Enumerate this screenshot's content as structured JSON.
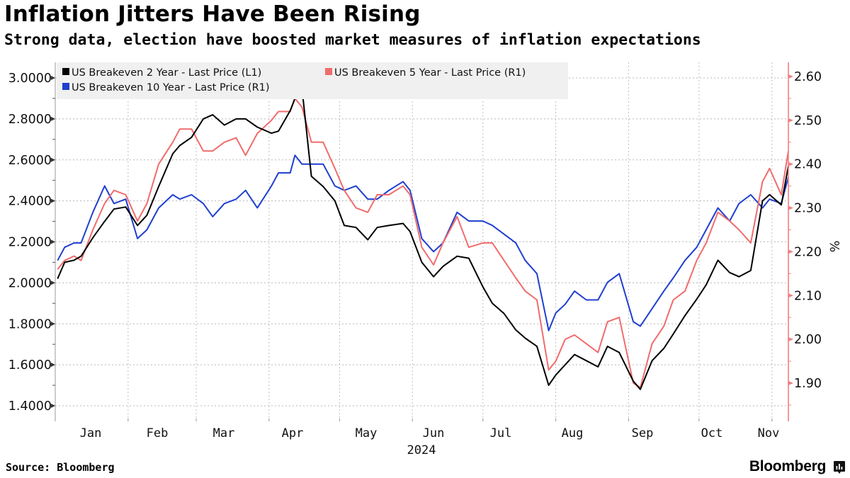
{
  "header": {
    "title": "Inflation Jitters Have Been Rising",
    "subtitle": "Strong data, election have boosted market measures of inflation expectations"
  },
  "footer": {
    "source": "Source: Bloomberg",
    "brand": "Bloomberg",
    "brand_icon": "bloomberg-terminal-icon"
  },
  "chart_data": {
    "type": "line",
    "title": "Inflation Jitters Have Been Rising",
    "subtitle": "Strong data, election have boosted market measures of inflation expectations",
    "xlabel": "2024",
    "x_tick_labels": [
      "Jan",
      "Feb",
      "Mar",
      "Apr",
      "May",
      "Jun",
      "Jul",
      "Aug",
      "Sep",
      "Oct",
      "Nov"
    ],
    "x_year_label": "2024",
    "x_range": [
      "2024-01-01",
      "2024-11-08"
    ],
    "grid": true,
    "legend_position": "top-left",
    "left_axis": {
      "ticks": [
        3.0,
        2.8,
        2.6,
        2.4,
        2.2,
        2.0,
        1.8,
        1.6,
        1.4
      ],
      "tick_labels": [
        "3.0000",
        "2.8000",
        "2.6000",
        "2.4000",
        "2.2000",
        "2.0000",
        "1.8000",
        "1.6000",
        "1.4000"
      ],
      "range": [
        1.35,
        3.07
      ]
    },
    "right_axis": {
      "label": "%",
      "ticks": [
        2.6,
        2.5,
        2.4,
        2.3,
        2.2,
        2.1,
        2.0,
        1.9
      ],
      "tick_labels": [
        "2.60",
        "2.50",
        "2.40",
        "2.30",
        "2.20",
        "2.10",
        "2.00",
        "1.90"
      ],
      "range": [
        1.84,
        2.63
      ],
      "color": "#f08080"
    },
    "series": [
      {
        "name": "US Breakeven 2 Year - Last Price (L1)",
        "axis": "left",
        "color": "#000000",
        "dates": [
          "2024-01-02",
          "2024-01-05",
          "2024-01-09",
          "2024-01-12",
          "2024-01-17",
          "2024-01-22",
          "2024-01-26",
          "2024-01-31",
          "2024-02-05",
          "2024-02-09",
          "2024-02-14",
          "2024-02-20",
          "2024-02-23",
          "2024-02-28",
          "2024-03-04",
          "2024-03-08",
          "2024-03-13",
          "2024-03-18",
          "2024-03-22",
          "2024-03-27",
          "2024-04-02",
          "2024-04-05",
          "2024-04-10",
          "2024-04-12",
          "2024-04-15",
          "2024-04-19",
          "2024-04-24",
          "2024-04-29",
          "2024-05-03",
          "2024-05-08",
          "2024-05-13",
          "2024-05-17",
          "2024-05-22",
          "2024-05-28",
          "2024-05-31",
          "2024-06-05",
          "2024-06-10",
          "2024-06-14",
          "2024-06-20",
          "2024-06-25",
          "2024-07-01",
          "2024-07-05",
          "2024-07-10",
          "2024-07-15",
          "2024-07-19",
          "2024-07-24",
          "2024-07-29",
          "2024-08-01",
          "2024-08-05",
          "2024-08-09",
          "2024-08-14",
          "2024-08-19",
          "2024-08-23",
          "2024-08-28",
          "2024-09-03",
          "2024-09-06",
          "2024-09-11",
          "2024-09-16",
          "2024-09-20",
          "2024-09-25",
          "2024-09-30",
          "2024-10-04",
          "2024-10-09",
          "2024-10-14",
          "2024-10-18",
          "2024-10-23",
          "2024-10-28",
          "2024-10-31",
          "2024-11-05",
          "2024-11-08"
        ],
        "values": [
          2.02,
          2.1,
          2.11,
          2.13,
          2.22,
          2.3,
          2.36,
          2.37,
          2.28,
          2.33,
          2.47,
          2.63,
          2.67,
          2.71,
          2.8,
          2.82,
          2.77,
          2.8,
          2.8,
          2.76,
          2.73,
          2.74,
          2.84,
          2.9,
          2.95,
          2.52,
          2.47,
          2.4,
          2.28,
          2.27,
          2.21,
          2.27,
          2.28,
          2.29,
          2.25,
          2.1,
          2.03,
          2.08,
          2.13,
          2.12,
          1.98,
          1.9,
          1.85,
          1.77,
          1.73,
          1.69,
          1.5,
          1.55,
          1.6,
          1.65,
          1.62,
          1.59,
          1.69,
          1.66,
          1.52,
          1.48,
          1.62,
          1.68,
          1.75,
          1.84,
          1.92,
          1.99,
          2.11,
          2.05,
          2.03,
          2.06,
          2.4,
          2.43,
          2.38,
          2.57
        ]
      },
      {
        "name": "US Breakeven 5 Year - Last Price (R1)",
        "axis": "right",
        "color": "#f06c6c",
        "dates": [
          "2024-01-02",
          "2024-01-05",
          "2024-01-09",
          "2024-01-12",
          "2024-01-17",
          "2024-01-22",
          "2024-01-26",
          "2024-01-31",
          "2024-02-05",
          "2024-02-09",
          "2024-02-14",
          "2024-02-20",
          "2024-02-23",
          "2024-02-28",
          "2024-03-04",
          "2024-03-08",
          "2024-03-13",
          "2024-03-18",
          "2024-03-22",
          "2024-03-27",
          "2024-04-02",
          "2024-04-05",
          "2024-04-10",
          "2024-04-12",
          "2024-04-15",
          "2024-04-19",
          "2024-04-24",
          "2024-04-29",
          "2024-05-03",
          "2024-05-08",
          "2024-05-13",
          "2024-05-17",
          "2024-05-22",
          "2024-05-28",
          "2024-05-31",
          "2024-06-05",
          "2024-06-10",
          "2024-06-14",
          "2024-06-20",
          "2024-06-25",
          "2024-07-01",
          "2024-07-05",
          "2024-07-10",
          "2024-07-15",
          "2024-07-19",
          "2024-07-24",
          "2024-07-29",
          "2024-08-01",
          "2024-08-05",
          "2024-08-09",
          "2024-08-14",
          "2024-08-19",
          "2024-08-23",
          "2024-08-28",
          "2024-09-03",
          "2024-09-06",
          "2024-09-11",
          "2024-09-16",
          "2024-09-20",
          "2024-09-25",
          "2024-09-30",
          "2024-10-04",
          "2024-10-09",
          "2024-10-14",
          "2024-10-18",
          "2024-10-23",
          "2024-10-28",
          "2024-10-31",
          "2024-11-05",
          "2024-11-08"
        ],
        "values": [
          2.16,
          2.18,
          2.19,
          2.18,
          2.25,
          2.31,
          2.34,
          2.33,
          2.27,
          2.31,
          2.4,
          2.45,
          2.48,
          2.48,
          2.43,
          2.43,
          2.45,
          2.46,
          2.42,
          2.47,
          2.5,
          2.52,
          2.52,
          2.55,
          2.53,
          2.45,
          2.45,
          2.39,
          2.34,
          2.3,
          2.29,
          2.33,
          2.33,
          2.35,
          2.33,
          2.21,
          2.17,
          2.22,
          2.28,
          2.21,
          2.22,
          2.22,
          2.18,
          2.14,
          2.11,
          2.09,
          1.93,
          1.95,
          2.0,
          2.01,
          1.99,
          1.97,
          2.04,
          2.05,
          1.9,
          1.89,
          1.99,
          2.03,
          2.09,
          2.11,
          2.18,
          2.22,
          2.29,
          2.27,
          2.25,
          2.22,
          2.36,
          2.39,
          2.33,
          2.43
        ]
      },
      {
        "name": "US Breakeven 10 Year - Last Price (R1)",
        "axis": "right",
        "color": "#1f3fd0",
        "dates": [
          "2024-01-02",
          "2024-01-05",
          "2024-01-09",
          "2024-01-12",
          "2024-01-17",
          "2024-01-22",
          "2024-01-26",
          "2024-01-31",
          "2024-02-05",
          "2024-02-09",
          "2024-02-14",
          "2024-02-20",
          "2024-02-23",
          "2024-02-28",
          "2024-03-04",
          "2024-03-08",
          "2024-03-13",
          "2024-03-18",
          "2024-03-22",
          "2024-03-27",
          "2024-04-02",
          "2024-04-05",
          "2024-04-10",
          "2024-04-12",
          "2024-04-15",
          "2024-04-19",
          "2024-04-24",
          "2024-04-29",
          "2024-05-03",
          "2024-05-08",
          "2024-05-13",
          "2024-05-17",
          "2024-05-22",
          "2024-05-28",
          "2024-05-31",
          "2024-06-05",
          "2024-06-10",
          "2024-06-14",
          "2024-06-20",
          "2024-06-25",
          "2024-07-01",
          "2024-07-05",
          "2024-07-10",
          "2024-07-15",
          "2024-07-19",
          "2024-07-24",
          "2024-07-29",
          "2024-08-01",
          "2024-08-05",
          "2024-08-09",
          "2024-08-14",
          "2024-08-19",
          "2024-08-23",
          "2024-08-28",
          "2024-09-03",
          "2024-09-06",
          "2024-09-11",
          "2024-09-16",
          "2024-09-20",
          "2024-09-25",
          "2024-09-30",
          "2024-10-04",
          "2024-10-09",
          "2024-10-14",
          "2024-10-18",
          "2024-10-23",
          "2024-10-28",
          "2024-10-31",
          "2024-11-05",
          "2024-11-08"
        ],
        "values": [
          2.18,
          2.21,
          2.22,
          2.22,
          2.29,
          2.35,
          2.31,
          2.32,
          2.23,
          2.25,
          2.3,
          2.33,
          2.32,
          2.33,
          2.31,
          2.28,
          2.31,
          2.32,
          2.34,
          2.3,
          2.35,
          2.38,
          2.38,
          2.42,
          2.4,
          2.4,
          2.4,
          2.35,
          2.34,
          2.35,
          2.32,
          2.32,
          2.34,
          2.36,
          2.34,
          2.23,
          2.2,
          2.22,
          2.29,
          2.27,
          2.27,
          2.26,
          2.24,
          2.22,
          2.18,
          2.15,
          2.02,
          2.06,
          2.08,
          2.11,
          2.09,
          2.09,
          2.13,
          2.15,
          2.04,
          2.03,
          2.07,
          2.11,
          2.14,
          2.18,
          2.21,
          2.25,
          2.3,
          2.27,
          2.31,
          2.33,
          2.3,
          2.32,
          2.31,
          2.37
        ]
      }
    ]
  }
}
